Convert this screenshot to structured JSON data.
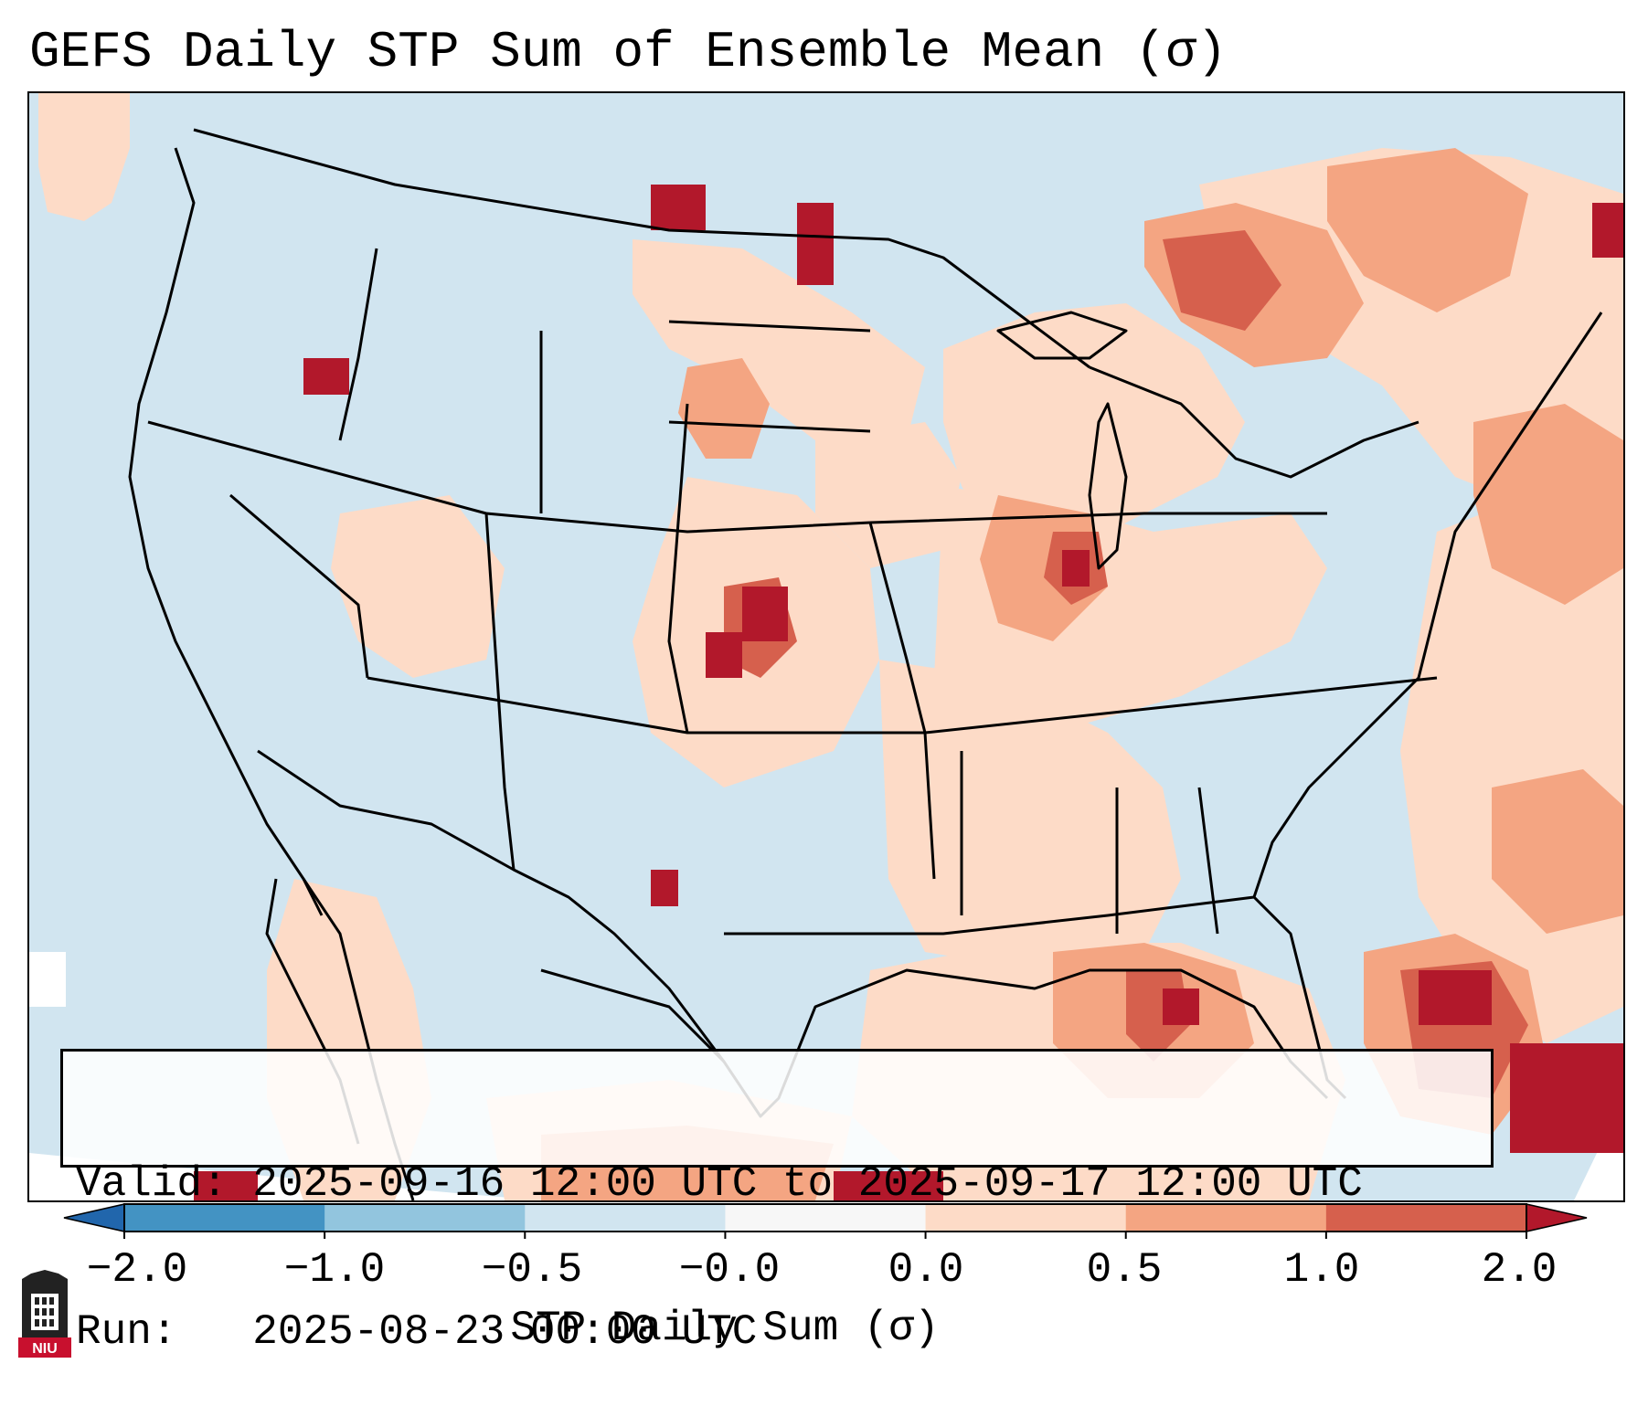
{
  "title": "GEFS Daily STP Sum of Ensemble Mean (σ)",
  "info": {
    "valid_line": "Valid: 2025-09-16 12:00 UTC to 2025-09-17 12:00 UTC",
    "run_line": "Run:   2025-08-23 00:00 UTC"
  },
  "colorbar": {
    "label": "STP Daily Sum (σ)",
    "ticks": [
      "−2.0",
      "−1.0",
      "−0.5",
      "−0.0",
      "0.0",
      "0.5",
      "1.0",
      "2.0"
    ],
    "colors": [
      "#2166ac",
      "#4393c3",
      "#92c5de",
      "#d1e5f0",
      "#f7f7f7",
      "#fddbc7",
      "#f4a582",
      "#d6604d",
      "#b2182b"
    ]
  },
  "colors": {
    "ocean_land_base": "#d1e5f0",
    "positive_light": "#fddbc7",
    "positive_medium": "#f4a582",
    "positive_strong": "#d6604d",
    "positive_max": "#b2182b",
    "near_zero": "#f7f7f7"
  },
  "logo": {
    "text": "NIU"
  }
}
